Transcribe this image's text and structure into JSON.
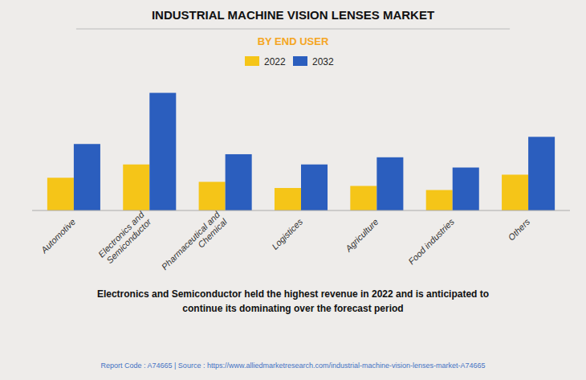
{
  "chart_data": {
    "type": "bar",
    "title": "INDUSTRIAL MACHINE VISION LENSES MARKET",
    "subtitle": "BY END USER",
    "categories": [
      "Automotive",
      "Electronics and\nSemiconductor",
      "Pharmaceutical and\nChemical",
      "Logistices",
      "Agriculture",
      "Food industries",
      "Others"
    ],
    "series": [
      {
        "name": "2022",
        "color": "#F5C518",
        "values": [
          3.2,
          4.5,
          2.8,
          2.2,
          2.4,
          2.0,
          3.5
        ]
      },
      {
        "name": "2032",
        "color": "#2B5EBE",
        "values": [
          6.5,
          11.5,
          5.5,
          4.5,
          5.2,
          4.2,
          7.2
        ]
      }
    ],
    "ylim": [
      0,
      12.88
    ],
    "grid": false,
    "tick_labels": "x",
    "legend": "top",
    "annotations": [
      "Electronics and Semiconductor held the highest revenue in 2022 and is anticipated to",
      "continue its dominating over the forecast period",
      "Report Code : A74665  |  Source : https://www.alliedmarketresearch.com/industrial-machine-vision-lenses-market-A74665"
    ]
  }
}
